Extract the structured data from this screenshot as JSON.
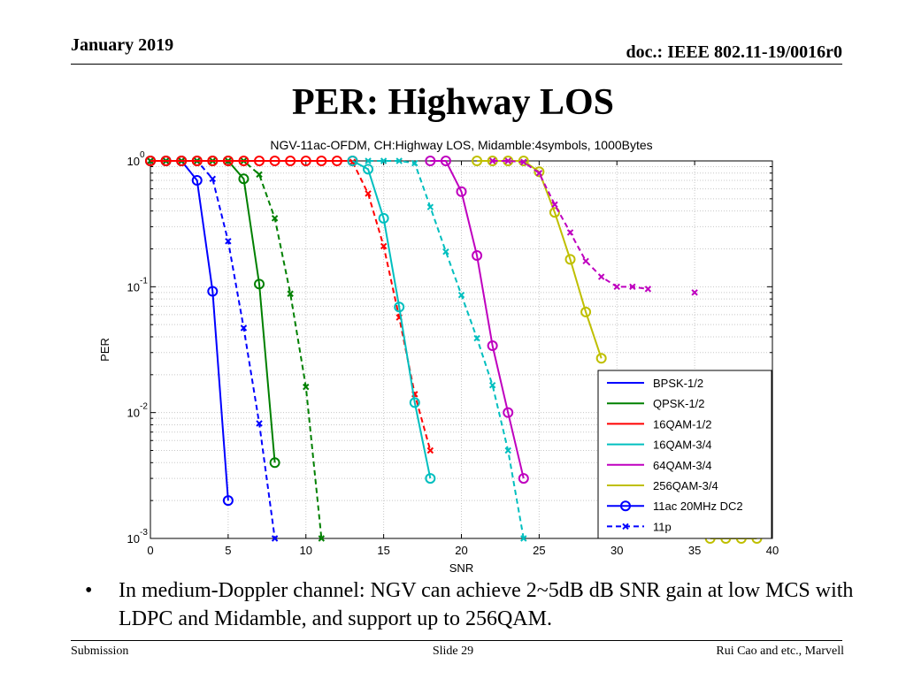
{
  "header": {
    "date": "January 2019",
    "doc": "doc.: IEEE 802.11-19/0016r0"
  },
  "slide_title": "PER: Highway LOS",
  "bullet": {
    "symbol": "•",
    "text": "In medium-Doppler channel: NGV can achieve 2~5dB dB SNR gain at low MCS with LDPC and Midamble, and support up to 256QAM."
  },
  "footer": {
    "left": "Submission",
    "center": "Slide 29",
    "right": "Rui Cao and etc., Marvell"
  },
  "chart_data": {
    "type": "line",
    "title": "NGV-11ac-OFDM, CH:Highway LOS, Midamble:4symbols, 1000Bytes",
    "xlabel": "SNR",
    "ylabel": "PER",
    "xlim": [
      0,
      40
    ],
    "ylim": [
      0.001,
      1
    ],
    "yscale": "log",
    "grid": true,
    "xticks": [
      "0",
      "5",
      "10",
      "15",
      "20",
      "25",
      "30",
      "35",
      "40"
    ],
    "yticks": [
      {
        "base": "10",
        "exp": "0"
      },
      {
        "base": "10",
        "exp": "-1"
      },
      {
        "base": "10",
        "exp": "-2"
      },
      {
        "base": "10",
        "exp": "-3"
      }
    ],
    "legend_position": "bottom-right",
    "legend": [
      {
        "label": "BPSK-1/2",
        "color": "#0000ff",
        "style": "solid",
        "marker": "none"
      },
      {
        "label": "QPSK-1/2",
        "color": "#008000",
        "style": "solid",
        "marker": "none"
      },
      {
        "label": "16QAM-1/2",
        "color": "#ff0000",
        "style": "solid",
        "marker": "none"
      },
      {
        "label": "16QAM-3/4",
        "color": "#00bfbf",
        "style": "solid",
        "marker": "none"
      },
      {
        "label": "64QAM-3/4",
        "color": "#bf00bf",
        "style": "solid",
        "marker": "none"
      },
      {
        "label": "256QAM-3/4",
        "color": "#bfbf00",
        "style": "solid",
        "marker": "none"
      },
      {
        "label": "11ac 20MHz DC2",
        "color": "#0000ff",
        "style": "solid",
        "marker": "o"
      },
      {
        "label": "11p",
        "color": "#0000ff",
        "style": "dashed",
        "marker": "x"
      }
    ],
    "series": [
      {
        "name": "BPSK 11ac",
        "color": "#0000ff",
        "style": "solid",
        "marker": "o",
        "x": [
          0,
          1,
          2,
          3,
          4,
          5
        ],
        "y": [
          1,
          1,
          1,
          0.7,
          0.092,
          0.002
        ]
      },
      {
        "name": "BPSK 11p",
        "color": "#0000ff",
        "style": "dashed",
        "marker": "x",
        "x": [
          0,
          1,
          2,
          3,
          4,
          5,
          6,
          7,
          8
        ],
        "y": [
          1,
          1,
          1,
          1,
          0.72,
          0.23,
          0.047,
          0.0082,
          0.001
        ]
      },
      {
        "name": "QPSK 11ac",
        "color": "#008000",
        "style": "solid",
        "marker": "o",
        "x": [
          0,
          1,
          2,
          3,
          4,
          5,
          6,
          7,
          8
        ],
        "y": [
          1,
          1,
          1,
          1,
          1,
          1,
          0.72,
          0.105,
          0.004
        ]
      },
      {
        "name": "QPSK 11p",
        "color": "#008000",
        "style": "dashed",
        "marker": "x",
        "x": [
          0,
          1,
          2,
          3,
          4,
          5,
          6,
          7,
          8,
          9,
          10,
          11
        ],
        "y": [
          1,
          1,
          1,
          1,
          1,
          1,
          1,
          0.78,
          0.35,
          0.088,
          0.016,
          0.001
        ]
      },
      {
        "name": "16QAM-1/2 11ac",
        "color": "#ff0000",
        "style": "solid",
        "marker": "o",
        "x": [
          0,
          1,
          2,
          3,
          4,
          5,
          6,
          7,
          8,
          9,
          10,
          11,
          12,
          13
        ],
        "y": [
          1,
          1,
          1,
          1,
          1,
          1,
          1,
          1,
          1,
          1,
          1,
          1,
          1,
          1
        ]
      },
      {
        "name": "16QAM-1/2 11p",
        "color": "#ff0000",
        "style": "dashed",
        "marker": "x",
        "x": [
          13,
          14,
          15,
          16,
          17,
          18
        ],
        "y": [
          0.98,
          0.55,
          0.21,
          0.057,
          0.014,
          0.005
        ]
      },
      {
        "name": "16QAM-3/4 11ac",
        "color": "#00bfbf",
        "style": "solid",
        "marker": "o",
        "x": [
          13,
          14,
          15,
          16,
          17,
          18
        ],
        "y": [
          1,
          0.86,
          0.35,
          0.069,
          0.012,
          0.003
        ]
      },
      {
        "name": "16QAM-3/4 11p",
        "color": "#00bfbf",
        "style": "dashed",
        "marker": "x",
        "x": [
          14,
          15,
          16,
          17,
          18,
          19,
          20,
          21,
          22,
          23,
          24
        ],
        "y": [
          1,
          1,
          1,
          0.96,
          0.43,
          0.19,
          0.086,
          0.039,
          0.0165,
          0.005,
          0.001
        ]
      },
      {
        "name": "64QAM-3/4 11ac",
        "color": "#bf00bf",
        "style": "solid",
        "marker": "o",
        "x": [
          18,
          19,
          20,
          21,
          22,
          23,
          24
        ],
        "y": [
          1,
          1,
          0.57,
          0.177,
          0.034,
          0.01,
          0.003
        ]
      },
      {
        "name": "256QAM-3/4 11ac",
        "color": "#bfbf00",
        "style": "solid",
        "marker": "o",
        "x": [
          21,
          22,
          23,
          24,
          25,
          26,
          27,
          28,
          29
        ],
        "y": [
          1,
          1,
          1,
          1,
          0.82,
          0.39,
          0.165,
          0.063,
          0.027
        ]
      },
      {
        "name": "256QAM-3/4 11ac tail",
        "color": "#bfbf00",
        "style": "solid",
        "marker": "o",
        "x": [
          36,
          37,
          38,
          39
        ],
        "y": [
          0.001,
          0.001,
          0.001,
          0.001
        ]
      },
      {
        "name": "64QAM-3/4 11p",
        "color": "#bf00bf",
        "style": "dashed",
        "marker": "x",
        "x": [
          22,
          23,
          24,
          25,
          26,
          27,
          28,
          29,
          30,
          31,
          32
        ],
        "y": [
          1,
          1,
          0.98,
          0.8,
          0.45,
          0.27,
          0.16,
          0.12,
          0.1,
          0.1,
          0.096
        ]
      },
      {
        "name": "64QAM-3/4 11p isolated",
        "color": "#bf00bf",
        "style": "dashed",
        "marker": "x",
        "x": [
          35
        ],
        "y": [
          0.09
        ]
      }
    ]
  }
}
